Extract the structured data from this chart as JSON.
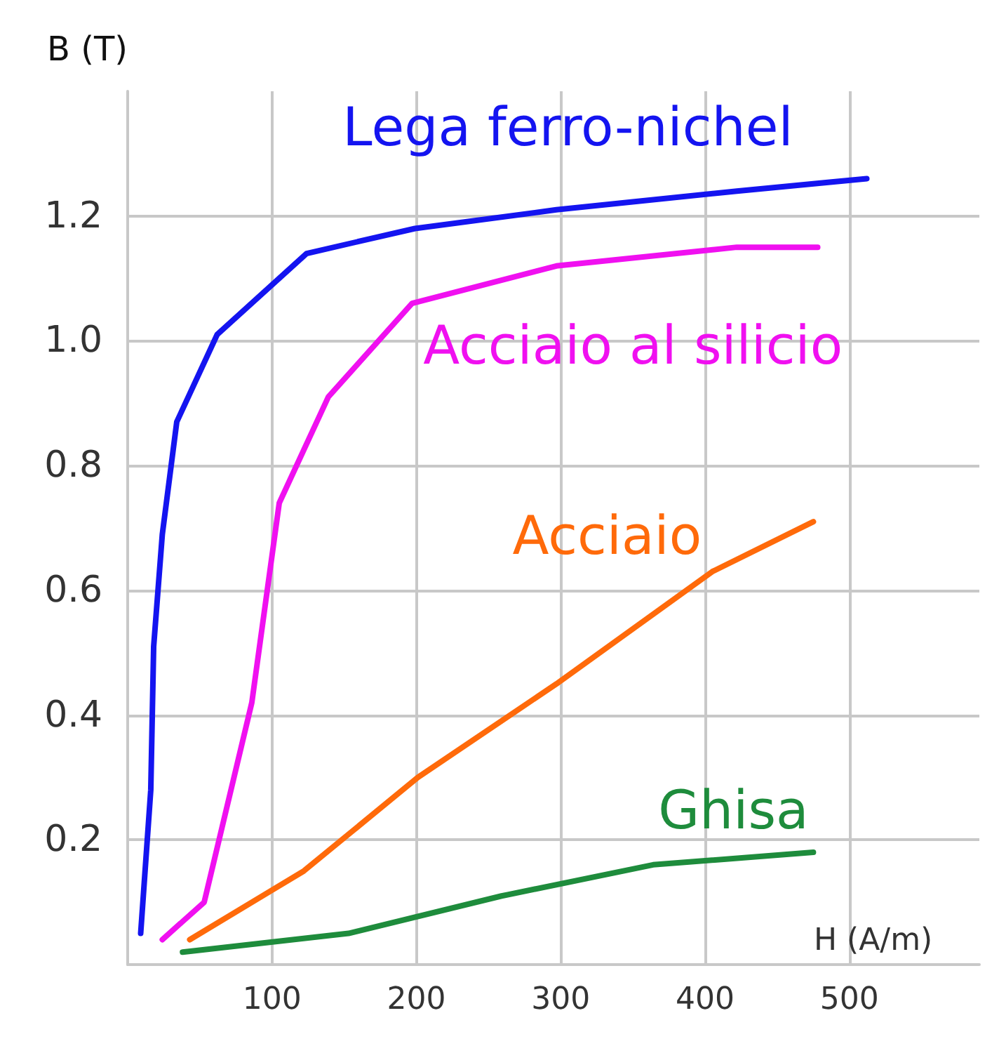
{
  "chart_data": {
    "type": "line",
    "xlabel": "H (A/m)",
    "ylabel": "B (T)",
    "xlim": [
      0,
      590
    ],
    "xticks": [
      100,
      200,
      300,
      400,
      500
    ],
    "ylim": [
      0,
      1.4
    ],
    "yticks": [
      {
        "value": 0.2,
        "label": "0.2"
      },
      {
        "value": 0.4,
        "label": "0.4"
      },
      {
        "value": 0.6,
        "label": "0.6"
      },
      {
        "value": 0.8,
        "label": "0.8"
      },
      {
        "value": 1.0,
        "label": "1.0"
      },
      {
        "value": 1.2,
        "label": "1.2"
      }
    ],
    "grid": true,
    "legend": false,
    "marker": "none",
    "line_style": "solid",
    "series": [
      {
        "name": "Lega ferro-nichel",
        "color": "#1414f0",
        "x": [
          9,
          16,
          18,
          24,
          34,
          62,
          124,
          199,
          297,
          422,
          512
        ],
        "values": [
          0.05,
          0.28,
          0.51,
          0.69,
          0.87,
          1.01,
          1.14,
          1.18,
          1.21,
          1.24,
          1.26
        ]
      },
      {
        "name": "Acciaio al silicio",
        "color": "#f010f0",
        "x": [
          24,
          53,
          86,
          105,
          139,
          197,
          297,
          422,
          478
        ],
        "values": [
          0.04,
          0.1,
          0.42,
          0.74,
          0.91,
          1.06,
          1.12,
          1.15,
          1.15
        ]
      },
      {
        "name": "Acciaio",
        "color": "#ff6a0a",
        "x": [
          43,
          122,
          201,
          297,
          405,
          475
        ],
        "values": [
          0.04,
          0.15,
          0.3,
          0.45,
          0.63,
          0.71
        ]
      },
      {
        "name": "Ghisa",
        "color": "#1e8c3c",
        "x": [
          38,
          153,
          259,
          364,
          475
        ],
        "values": [
          0.02,
          0.05,
          0.11,
          0.16,
          0.18
        ]
      }
    ]
  }
}
